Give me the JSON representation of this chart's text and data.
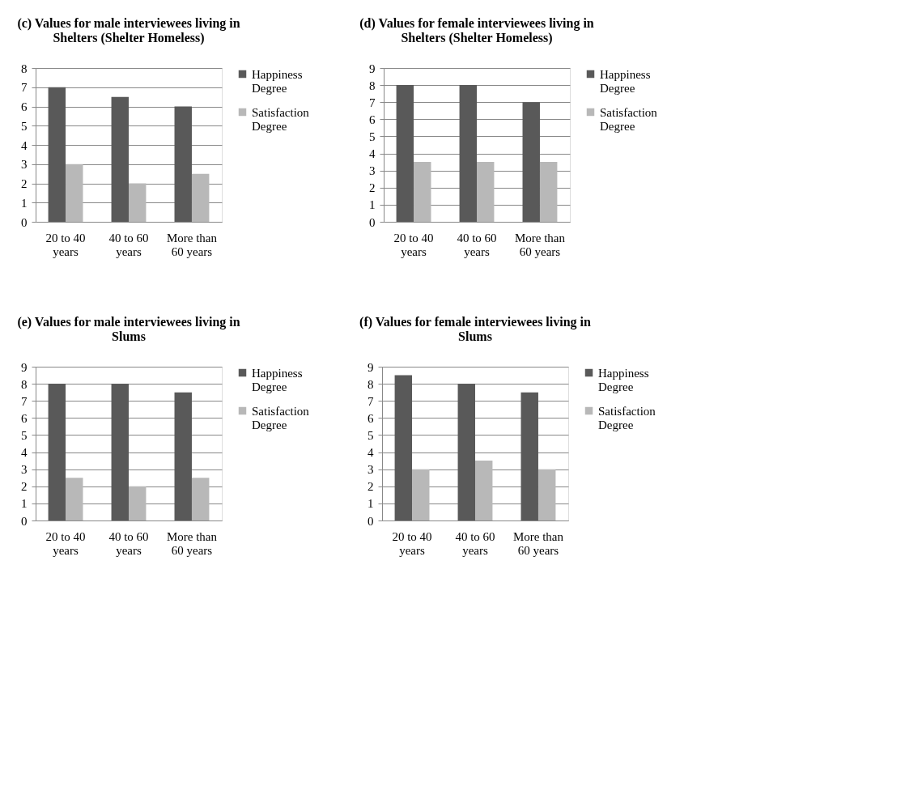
{
  "chart_data": [
    {
      "type": "bar",
      "title": "(c) Values for male interviewees living in Shelters (Shelter Homeless)",
      "categories": [
        "20 to 40 years",
        "40 to 60 years",
        "More than 60 years"
      ],
      "series": [
        {
          "name": "Happiness Degree",
          "color": "#595959",
          "values": [
            7,
            6.5,
            6
          ]
        },
        {
          "name": "Satisfaction Degree",
          "color": "#b8b8b8",
          "values": [
            3,
            2,
            2.5
          ]
        }
      ],
      "ylim": [
        0,
        8
      ],
      "yticks": [
        0,
        1,
        2,
        3,
        4,
        5,
        6,
        7,
        8
      ],
      "grid": "y",
      "legend": "right"
    },
    {
      "type": "bar",
      "title": "(d) Values for female interviewees living in Shelters (Shelter Homeless)",
      "categories": [
        "20 to 40 years",
        "40 to 60 years",
        "More than 60 years"
      ],
      "series": [
        {
          "name": "Happiness Degree",
          "color": "#595959",
          "values": [
            8,
            8,
            7
          ]
        },
        {
          "name": "Satisfaction Degree",
          "color": "#b8b8b8",
          "values": [
            3.5,
            3.5,
            3.5
          ]
        }
      ],
      "ylim": [
        0,
        9
      ],
      "yticks": [
        0,
        1,
        2,
        3,
        4,
        5,
        6,
        7,
        8,
        9
      ],
      "grid": "y",
      "legend": "right"
    },
    {
      "type": "bar",
      "title": "(e) Values for male interviewees living in Slums",
      "categories": [
        "20 to 40 years",
        "40 to 60 years",
        "More than 60 years"
      ],
      "series": [
        {
          "name": "Happiness Degree",
          "color": "#595959",
          "values": [
            8,
            8,
            7.5
          ]
        },
        {
          "name": "Satisfaction Degree",
          "color": "#b8b8b8",
          "values": [
            2.5,
            2,
            2.5
          ]
        }
      ],
      "ylim": [
        0,
        9
      ],
      "yticks": [
        0,
        1,
        2,
        3,
        4,
        5,
        6,
        7,
        8,
        9
      ],
      "grid": "y",
      "legend": "right"
    },
    {
      "type": "bar",
      "title": "(f) Values for female interviewees living in Slums",
      "categories": [
        "20 to 40 years",
        "40 to 60 years",
        "More than 60 years"
      ],
      "series": [
        {
          "name": "Happiness Degree",
          "color": "#595959",
          "values": [
            8.5,
            8,
            7.5
          ]
        },
        {
          "name": "Satisfaction Degree",
          "color": "#b8b8b8",
          "values": [
            3,
            3.5,
            3
          ]
        }
      ],
      "ylim": [
        0,
        9
      ],
      "yticks": [
        0,
        1,
        2,
        3,
        4,
        5,
        6,
        7,
        8,
        9
      ],
      "grid": "y",
      "legend": "right"
    }
  ]
}
